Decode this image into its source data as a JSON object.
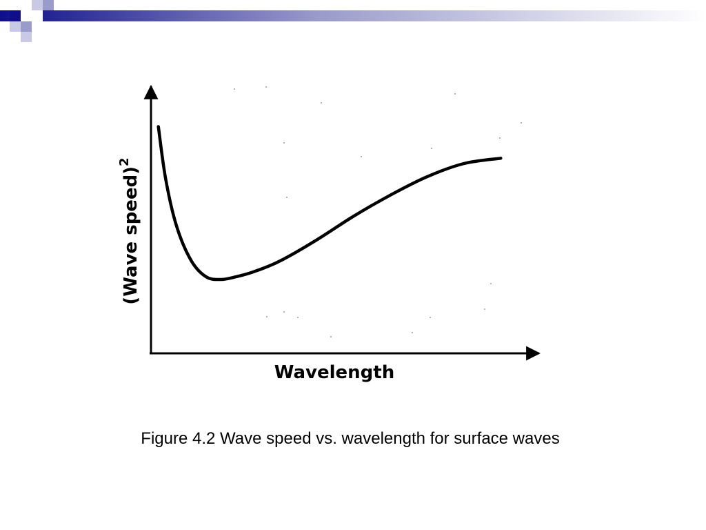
{
  "slide": {
    "caption": "Figure 4.2 Wave speed vs. wavelength for surface waves"
  },
  "theme": {
    "header_dark": "#0f0f8c",
    "header_mid": "#7c7cbf",
    "header_light": "#c9c9e6",
    "curve_color": "#000000"
  },
  "chart_data": {
    "type": "line",
    "title": "",
    "xlabel": "Wavelength",
    "ylabel": "(Wave speed)",
    "ylabel_superscript": "2",
    "x_ticks": [],
    "y_ticks": [],
    "grid": false,
    "xlim": [
      0,
      100
    ],
    "ylim": [
      0,
      100
    ],
    "series": [
      {
        "values_x": [
          2,
          4,
          7,
          11,
          15,
          19,
          23,
          28,
          35,
          45,
          55,
          65,
          75,
          85,
          95
        ],
        "values_y": [
          86,
          66,
          48,
          35,
          29,
          28,
          29,
          31,
          35,
          43,
          52,
          60,
          67,
          72,
          74
        ]
      }
    ]
  }
}
